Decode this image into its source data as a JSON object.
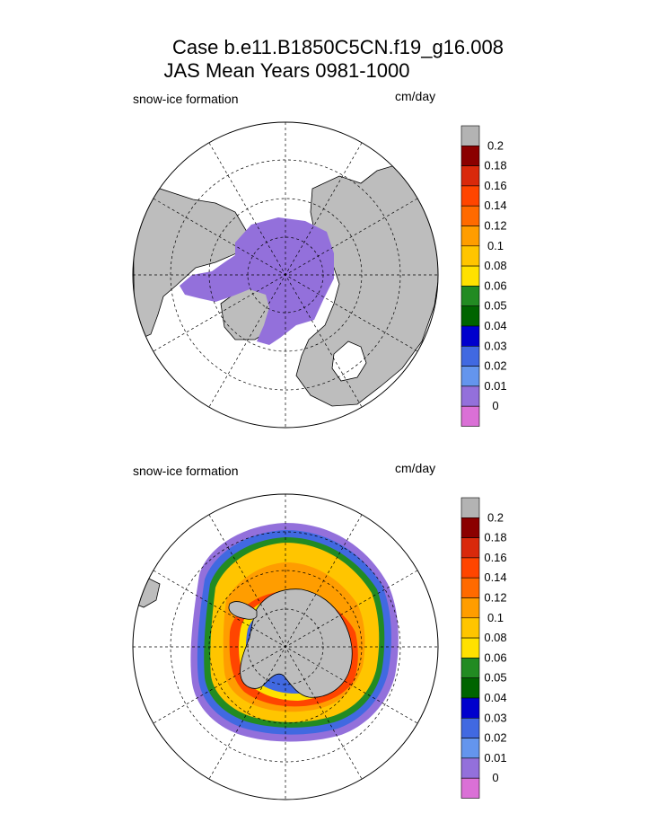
{
  "header": {
    "title_line1": "Case b.e11.B1850C5CN.f19_g16.008",
    "title_line2": "JAS Mean    Years 0981-1000"
  },
  "panels": [
    {
      "label": "snow-ice formation",
      "units": "cm/day",
      "hemisphere": "north"
    },
    {
      "label": "snow-ice formation",
      "units": "cm/day",
      "hemisphere": "south"
    }
  ],
  "colorbar": {
    "labels": [
      "0.2",
      "0.18",
      "0.16",
      "0.14",
      "0.12",
      "0.1",
      "0.08",
      "0.06",
      "0.05",
      "0.04",
      "0.03",
      "0.02",
      "0.01",
      "0"
    ],
    "colors": [
      "#b3b3b3",
      "#8b0000",
      "#d9290b",
      "#ff4500",
      "#ff6a00",
      "#ff9d00",
      "#ffc500",
      "#ffe100",
      "#228b22",
      "#006400",
      "#0000cd",
      "#4169e1",
      "#6495ed",
      "#9370db",
      "#da70d6"
    ]
  },
  "colors": {
    "land": "#bdbdbd",
    "north_ice": "#9370db"
  }
}
